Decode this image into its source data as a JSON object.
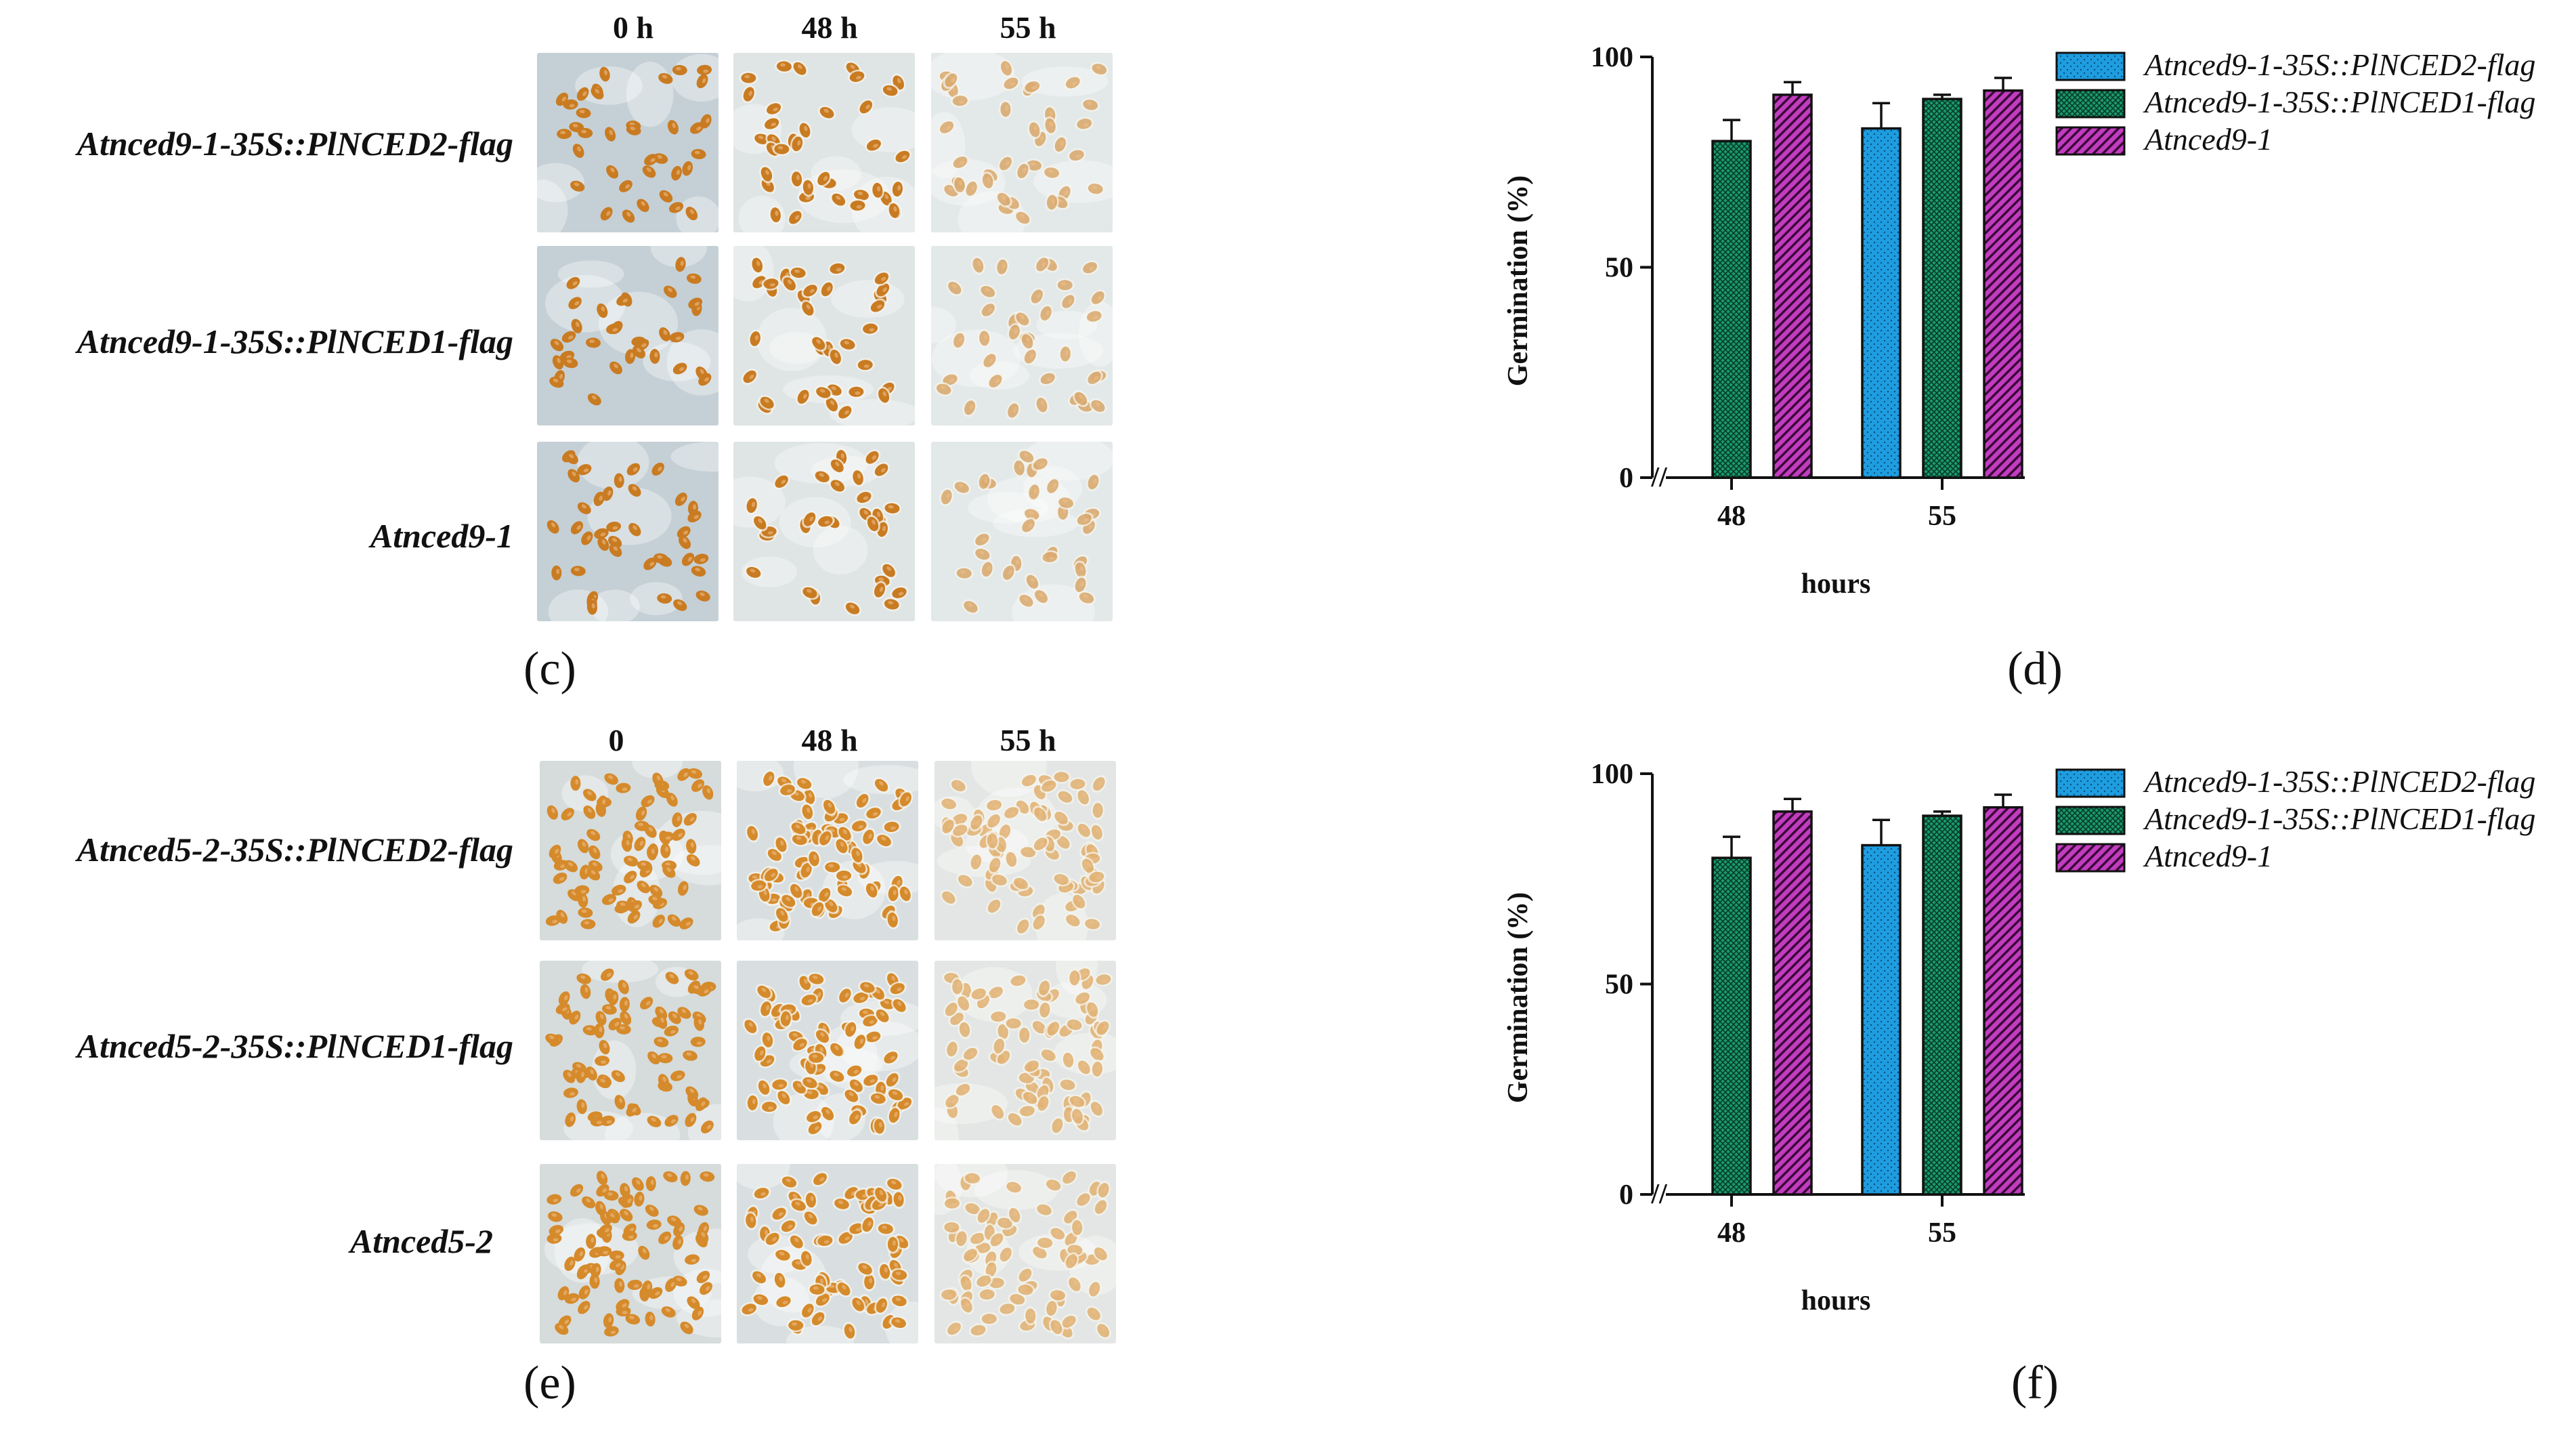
{
  "panels": {
    "c": {
      "letter": "(c)",
      "col_headers": [
        "0 h",
        "48 h",
        "55 h"
      ],
      "rows": [
        "Atnced9-1-35S::PlNCED2-flag",
        "Atnced9-1-35S::PlNCED1-flag",
        "Atnced9-1"
      ],
      "background_colors": [
        "#c5d0d6",
        "#dfe4e4",
        "#e3e8e8"
      ],
      "seed_color": "#c97b22"
    },
    "e": {
      "letter": "(e)",
      "col_headers": [
        "0",
        "48 h",
        "55 h"
      ],
      "rows": [
        "Atnced5-2-35S::PlNCED2-flag",
        "Atnced5-2-35S::PlNCED1-flag",
        "Atnced5-2"
      ],
      "background_colors": [
        "#d6dcdc",
        "#d9dfe0",
        "#e3e6e4"
      ],
      "seed_color": "#d58a2b"
    },
    "d": {
      "letter": "(d)"
    },
    "f": {
      "letter": "(f)"
    }
  },
  "chart_data": [
    {
      "id": "d",
      "type": "bar",
      "categories": [
        "48",
        "55"
      ],
      "series": [
        {
          "name": "Atnced9-1-35S::PlNCED2-flag",
          "values": [
            null,
            83
          ],
          "errors": [
            null,
            6
          ],
          "color": "#1e9de0",
          "pattern": "dots"
        },
        {
          "name": "Atnced9-1-35S::PlNCED1-flag",
          "values": [
            80,
            90
          ],
          "errors": [
            5,
            1
          ],
          "color": "#1a9a6c",
          "pattern": "grid"
        },
        {
          "name": "Atnced9-1",
          "values": [
            91,
            92
          ],
          "errors": [
            3,
            3
          ],
          "color": "#c23cbf",
          "pattern": "diagonal"
        }
      ],
      "title": "",
      "xlabel": "hours",
      "ylabel": "Germination (%)",
      "ylim": [
        0,
        100
      ],
      "yticks": [
        "0",
        "50",
        "100"
      ],
      "axis_break": "//",
      "legend_position": "top-right-outside"
    },
    {
      "id": "f",
      "type": "bar",
      "categories": [
        "48",
        "55"
      ],
      "series": [
        {
          "name": "Atnced9-1-35S::PlNCED2-flag",
          "values": [
            null,
            83
          ],
          "errors": [
            null,
            6
          ],
          "color": "#1e9de0",
          "pattern": "dots"
        },
        {
          "name": "Atnced9-1-35S::PlNCED1-flag",
          "values": [
            80,
            90
          ],
          "errors": [
            5,
            1
          ],
          "color": "#1a9a6c",
          "pattern": "grid"
        },
        {
          "name": "Atnced9-1",
          "values": [
            91,
            92
          ],
          "errors": [
            3,
            3
          ],
          "color": "#c23cbf",
          "pattern": "diagonal"
        }
      ],
      "title": "",
      "xlabel": "hours",
      "ylabel": "Germination (%)",
      "ylim": [
        0,
        100
      ],
      "yticks": [
        "0",
        "50",
        "100"
      ],
      "axis_break": "//",
      "legend_position": "top-right-outside"
    }
  ]
}
